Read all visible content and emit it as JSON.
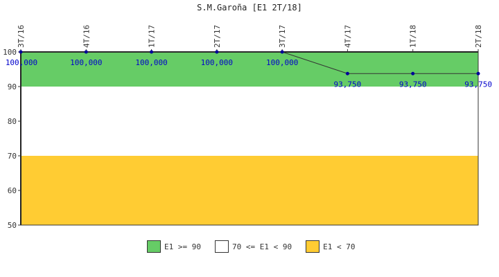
{
  "chart_data": {
    "type": "line",
    "title": "S.M.Garoña [E1 2T/18]",
    "categories": [
      "3T/16",
      "4T/16",
      "1T/17",
      "2T/17",
      "3T/17",
      "4T/17",
      "1T/18",
      "2T/18"
    ],
    "values": [
      100,
      100,
      100,
      100,
      100,
      93.75,
      93.75,
      93.75
    ],
    "value_labels": [
      "100,000",
      "100,000",
      "100,000",
      "100,000",
      "100,000",
      "93,750",
      "93,750",
      "93,750"
    ],
    "ylim": [
      50,
      100
    ],
    "yticks": [
      "50",
      "60",
      "70",
      "80",
      "90",
      "100"
    ],
    "grid": false,
    "bands": [
      {
        "from": 90,
        "to": 100,
        "color": "#66cc66",
        "label": "E1 >= 90"
      },
      {
        "from": 70,
        "to": 90,
        "color": "#ffffff",
        "label": "70 <= E1 < 90"
      },
      {
        "from": 50,
        "to": 70,
        "color": "#ffcc33",
        "label": "E1 < 70"
      }
    ],
    "line_color": "#333333",
    "point_color": "#000099",
    "label_color": "#0000cc",
    "legend_position": "bottom"
  }
}
